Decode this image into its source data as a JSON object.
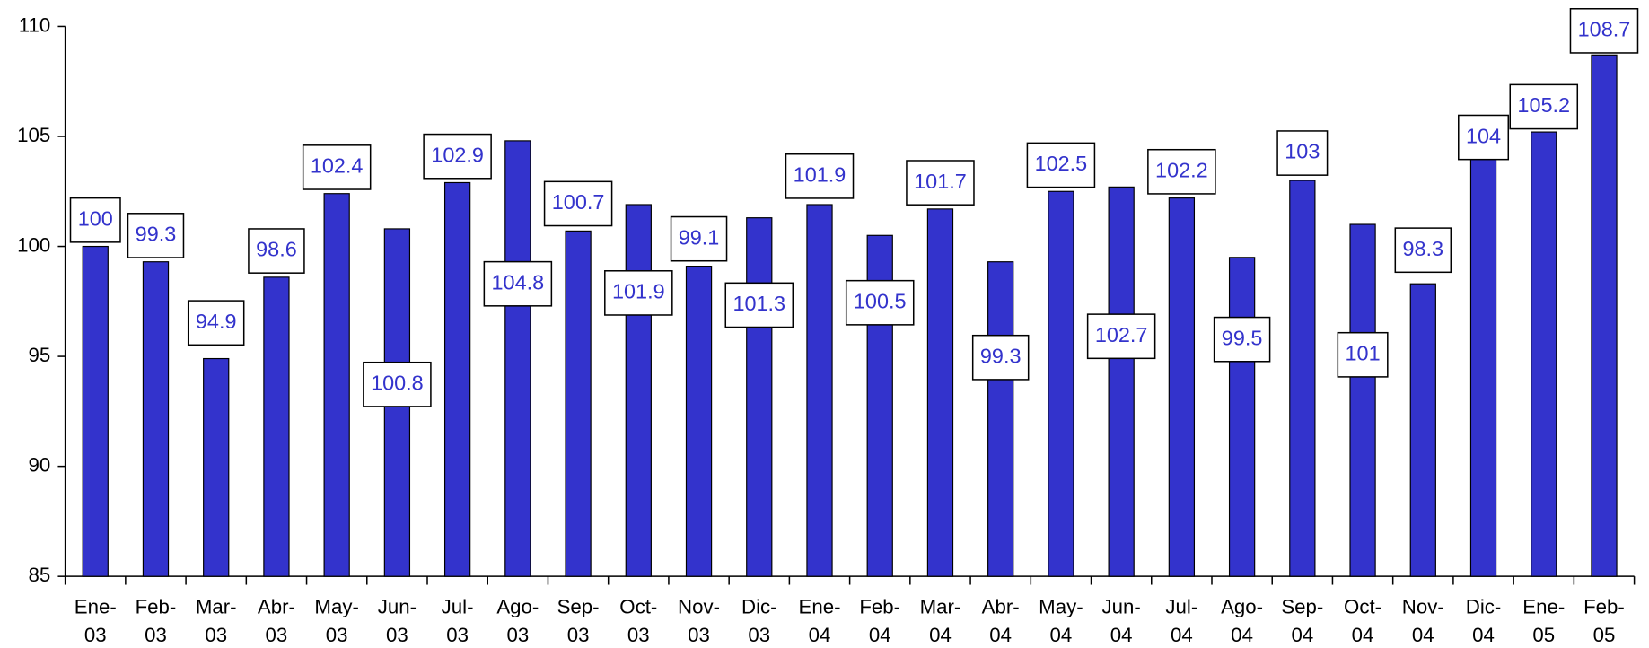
{
  "chart_data": {
    "type": "bar",
    "categories": [
      "Ene-03",
      "Feb-03",
      "Mar-03",
      "Abr-03",
      "May-03",
      "Jun-03",
      "Jul-03",
      "Ago-03",
      "Sep-03",
      "Oct-03",
      "Nov-03",
      "Dic-03",
      "Ene-04",
      "Feb-04",
      "Mar-04",
      "Abr-04",
      "May-04",
      "Jun-04",
      "Jul-04",
      "Ago-04",
      "Sep-04",
      "Oct-04",
      "Nov-04",
      "Dic-04",
      "Ene-05",
      "Feb-05"
    ],
    "values": [
      100,
      99.3,
      94.9,
      98.6,
      102.4,
      100.8,
      102.9,
      104.8,
      100.7,
      101.9,
      99.1,
      101.3,
      101.9,
      100.5,
      101.7,
      99.3,
      102.5,
      102.7,
      102.2,
      99.5,
      103,
      101,
      98.3,
      104,
      105.2,
      108.7
    ],
    "color": "#3333cc",
    "ylim": [
      85,
      110
    ],
    "yticks": [
      85,
      90,
      95,
      100,
      105,
      110
    ],
    "grid": false
  }
}
